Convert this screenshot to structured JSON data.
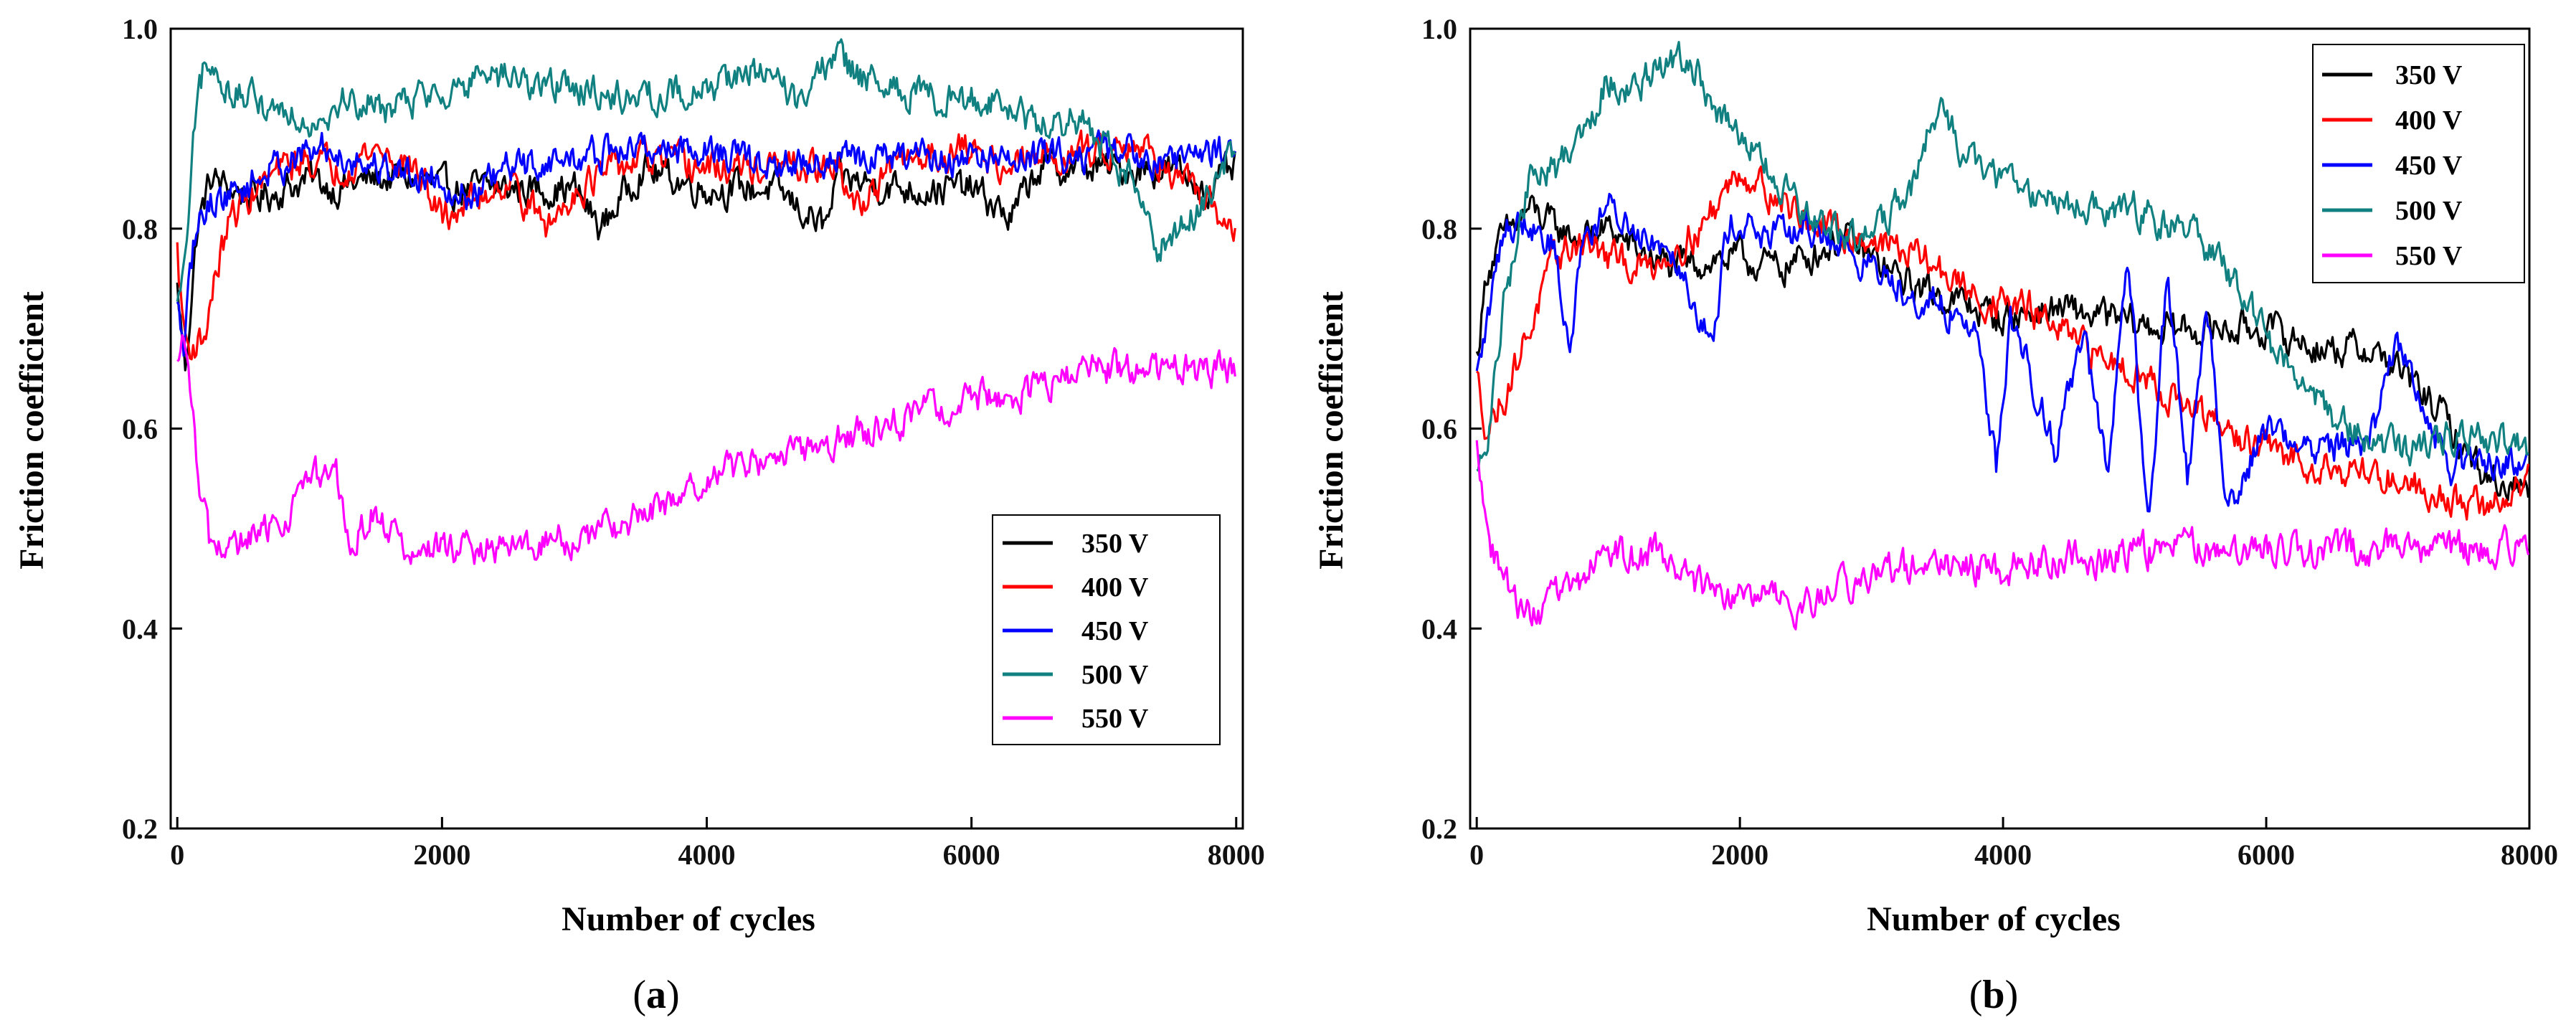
{
  "chart_data": [
    {
      "type": "line",
      "panel": "(a)",
      "panel_letter": "a",
      "xlabel": "Number of cycles",
      "ylabel": "Friction coefficient",
      "xlim": [
        -50,
        8050
      ],
      "ylim": [
        0.2,
        1.0
      ],
      "xticks": [
        0,
        2000,
        4000,
        6000,
        8000
      ],
      "xtick_labels": [
        "0",
        "2000",
        "4000",
        "6000",
        "8000"
      ],
      "yticks": [
        0.2,
        0.4,
        0.6,
        0.8,
        1.0
      ],
      "ytick_labels": [
        "0.2",
        "0.4",
        "0.6",
        "0.8",
        "1.0"
      ],
      "legend_position": "lower-right",
      "series": [
        {
          "name": "350 V",
          "color": "#000000",
          "x": [
            0,
            60,
            150,
            250,
            400,
            600,
            800,
            1000,
            1200,
            1500,
            1800,
            2000,
            2500,
            3000,
            3200,
            3500,
            4000,
            4500,
            4900,
            5000,
            5500,
            6000,
            6300,
            6500,
            7000,
            7500,
            7800,
            8000
          ],
          "y": [
            0.74,
            0.66,
            0.8,
            0.85,
            0.84,
            0.83,
            0.84,
            0.85,
            0.84,
            0.85,
            0.85,
            0.84,
            0.84,
            0.84,
            0.8,
            0.86,
            0.84,
            0.84,
            0.8,
            0.85,
            0.84,
            0.84,
            0.81,
            0.86,
            0.86,
            0.86,
            0.84,
            0.86
          ]
        },
        {
          "name": "400 V",
          "color": "#ff0000",
          "x": [
            0,
            30,
            80,
            200,
            300,
            400,
            600,
            800,
            1000,
            1200,
            1500,
            1800,
            2000,
            2500,
            2800,
            3000,
            3500,
            4000,
            4500,
            5000,
            5100,
            5500,
            6000,
            6300,
            6500,
            7000,
            7200,
            7500,
            7700,
            8000
          ],
          "y": [
            0.78,
            0.72,
            0.68,
            0.69,
            0.76,
            0.81,
            0.84,
            0.86,
            0.87,
            0.86,
            0.88,
            0.86,
            0.81,
            0.85,
            0.8,
            0.84,
            0.87,
            0.86,
            0.86,
            0.86,
            0.82,
            0.87,
            0.88,
            0.86,
            0.87,
            0.88,
            0.89,
            0.86,
            0.83,
            0.8
          ]
        },
        {
          "name": "450 V",
          "color": "#0000ff",
          "x": [
            0,
            50,
            120,
            200,
            300,
            500,
            700,
            900,
            1100,
            1300,
            1600,
            2000,
            2200,
            2500,
            3000,
            3500,
            4000,
            4500,
            5000,
            5500,
            6000,
            6500,
            7000,
            7500,
            8000
          ],
          "y": [
            0.72,
            0.68,
            0.78,
            0.82,
            0.83,
            0.84,
            0.86,
            0.87,
            0.88,
            0.87,
            0.86,
            0.85,
            0.83,
            0.86,
            0.87,
            0.88,
            0.88,
            0.86,
            0.87,
            0.87,
            0.87,
            0.87,
            0.88,
            0.87,
            0.88
          ]
        },
        {
          "name": "500 V",
          "color": "#118080",
          "x": [
            0,
            60,
            120,
            200,
            300,
            500,
            800,
            1000,
            1300,
            1600,
            2000,
            2500,
            3000,
            3500,
            4000,
            4300,
            4700,
            4950,
            5300,
            5800,
            6200,
            6500,
            6800,
            7000,
            7200,
            7400,
            7600,
            7800,
            8000
          ],
          "y": [
            0.72,
            0.76,
            0.88,
            0.96,
            0.95,
            0.93,
            0.92,
            0.91,
            0.93,
            0.92,
            0.94,
            0.95,
            0.94,
            0.93,
            0.94,
            0.96,
            0.93,
            0.97,
            0.94,
            0.93,
            0.93,
            0.9,
            0.91,
            0.88,
            0.85,
            0.78,
            0.8,
            0.84,
            0.88
          ]
        },
        {
          "name": "550 V",
          "color": "#ff00ff",
          "x": [
            0,
            60,
            150,
            250,
            400,
            600,
            800,
            1000,
            1200,
            1300,
            1500,
            1700,
            1800,
            2000,
            2500,
            3000,
            3500,
            4000,
            4500,
            5000,
            5500,
            6000,
            6500,
            7000,
            7500,
            8000
          ],
          "y": [
            0.66,
            0.69,
            0.56,
            0.48,
            0.48,
            0.49,
            0.51,
            0.55,
            0.55,
            0.48,
            0.52,
            0.48,
            0.47,
            0.48,
            0.48,
            0.49,
            0.51,
            0.55,
            0.57,
            0.59,
            0.61,
            0.63,
            0.64,
            0.66,
            0.66,
            0.66
          ]
        }
      ]
    },
    {
      "type": "line",
      "panel": "(b)",
      "panel_letter": "b",
      "xlabel": "Number of cycles",
      "ylabel": "Friction coefficient",
      "xlim": [
        -50,
        8000
      ],
      "ylim": [
        0.2,
        1.0
      ],
      "xticks": [
        0,
        2000,
        4000,
        6000,
        8000
      ],
      "xtick_labels": [
        "0",
        "2000",
        "4000",
        "6000",
        "8000"
      ],
      "yticks": [
        0.2,
        0.4,
        0.6,
        0.8,
        1.0
      ],
      "ytick_labels": [
        "0.2",
        "0.4",
        "0.6",
        "0.8",
        "1.0"
      ],
      "legend_position": "top-right",
      "series": [
        {
          "name": "350 V",
          "color": "#000000",
          "x": [
            0,
            80,
            200,
            400,
            600,
            800,
            1000,
            1200,
            1500,
            1800,
            2000,
            2300,
            2800,
            3200,
            3600,
            4000,
            4400,
            4800,
            5200,
            5600,
            6000,
            6400,
            6800,
            7000,
            7300,
            7500,
            7700,
            8000
          ],
          "y": [
            0.67,
            0.76,
            0.79,
            0.82,
            0.8,
            0.79,
            0.8,
            0.78,
            0.76,
            0.77,
            0.77,
            0.76,
            0.79,
            0.75,
            0.73,
            0.71,
            0.72,
            0.71,
            0.7,
            0.7,
            0.7,
            0.68,
            0.68,
            0.66,
            0.62,
            0.58,
            0.55,
            0.54
          ]
        },
        {
          "name": "400 V",
          "color": "#ff0000",
          "x": [
            0,
            80,
            200,
            400,
            600,
            800,
            1000,
            1300,
            1700,
            2000,
            2300,
            2600,
            3000,
            3400,
            3800,
            4200,
            4600,
            5000,
            5400,
            5800,
            6200,
            6600,
            7000,
            7400,
            7700,
            8000
          ],
          "y": [
            0.65,
            0.6,
            0.63,
            0.7,
            0.77,
            0.79,
            0.77,
            0.76,
            0.8,
            0.86,
            0.83,
            0.8,
            0.79,
            0.77,
            0.73,
            0.72,
            0.68,
            0.66,
            0.62,
            0.59,
            0.57,
            0.56,
            0.55,
            0.53,
            0.52,
            0.55
          ]
        },
        {
          "name": "450 V",
          "color": "#0000ff",
          "x": [
            0,
            100,
            200,
            400,
            600,
            700,
            800,
            1000,
            1200,
            1500,
            1800,
            1900,
            2000,
            2200,
            2600,
            3000,
            3400,
            3800,
            3950,
            4050,
            4200,
            4400,
            4600,
            4800,
            4950,
            5100,
            5250,
            5400,
            5550,
            5700,
            6000,
            6400,
            6800,
            7000,
            7400,
            7700,
            8000
          ],
          "y": [
            0.65,
            0.72,
            0.8,
            0.81,
            0.78,
            0.67,
            0.79,
            0.82,
            0.8,
            0.78,
            0.68,
            0.8,
            0.81,
            0.79,
            0.8,
            0.76,
            0.73,
            0.7,
            0.56,
            0.71,
            0.66,
            0.58,
            0.7,
            0.55,
            0.77,
            0.5,
            0.76,
            0.55,
            0.72,
            0.52,
            0.6,
            0.58,
            0.59,
            0.69,
            0.56,
            0.57,
            0.56
          ]
        },
        {
          "name": "500 V",
          "color": "#118080",
          "x": [
            0,
            100,
            200,
            400,
            600,
            800,
            1000,
            1200,
            1500,
            1700,
            1900,
            2100,
            2300,
            2600,
            3000,
            3300,
            3500,
            3800,
            4200,
            4600,
            5000,
            5400,
            5800,
            6000,
            6300,
            6600,
            7000,
            7400,
            7700,
            8000
          ],
          "y": [
            0.55,
            0.6,
            0.72,
            0.85,
            0.86,
            0.9,
            0.95,
            0.94,
            0.97,
            0.95,
            0.9,
            0.88,
            0.84,
            0.8,
            0.79,
            0.84,
            0.92,
            0.86,
            0.84,
            0.82,
            0.82,
            0.8,
            0.74,
            0.69,
            0.64,
            0.6,
            0.58,
            0.59,
            0.59,
            0.58
          ]
        },
        {
          "name": "550 V",
          "color": "#ff00ff",
          "x": [
            0,
            40,
            100,
            200,
            400,
            600,
            800,
            1000,
            1200,
            1400,
            1600,
            1900,
            2200,
            2400,
            2800,
            3200,
            3600,
            4000,
            4400,
            4800,
            5200,
            5600,
            6000,
            6500,
            7000,
            7500,
            8000
          ],
          "y": [
            0.58,
            0.55,
            0.48,
            0.45,
            0.41,
            0.43,
            0.45,
            0.48,
            0.47,
            0.48,
            0.45,
            0.43,
            0.43,
            0.42,
            0.44,
            0.46,
            0.46,
            0.46,
            0.47,
            0.47,
            0.48,
            0.48,
            0.48,
            0.48,
            0.48,
            0.48,
            0.48
          ]
        }
      ]
    }
  ]
}
